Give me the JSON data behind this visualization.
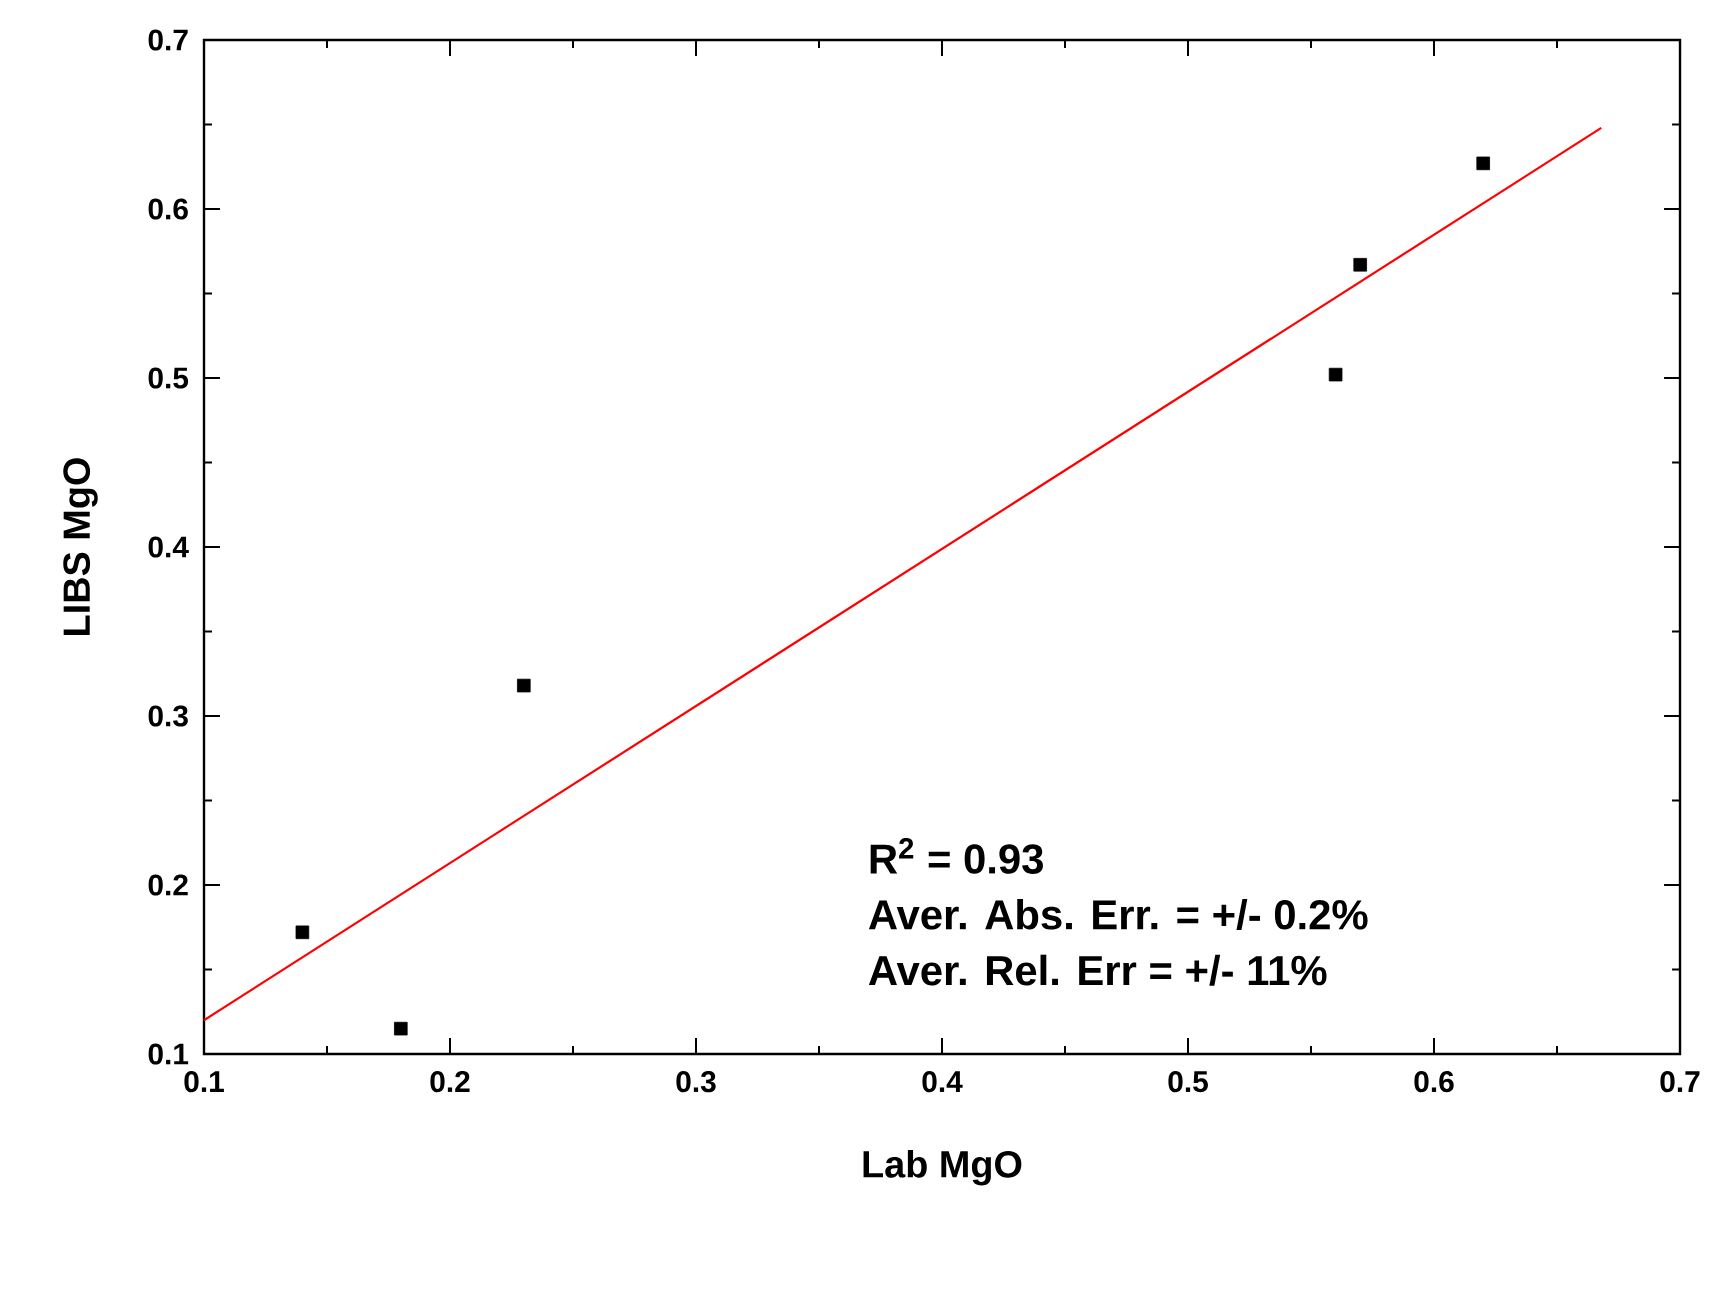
{
  "chart_data": {
    "type": "scatter",
    "xlabel": "Lab MgO",
    "ylabel": "LIBS MgO",
    "xlim": [
      0.1,
      0.7
    ],
    "ylim": [
      0.1,
      0.7
    ],
    "xticks": [
      0.1,
      0.2,
      0.3,
      0.4,
      0.5,
      0.6,
      0.7
    ],
    "yticks": [
      0.1,
      0.2,
      0.3,
      0.4,
      0.5,
      0.6,
      0.7
    ],
    "series": [
      {
        "color": "#000000",
        "x": [
          0.14,
          0.18,
          0.23,
          0.56,
          0.57,
          0.62
        ],
        "values": [
          0.172,
          0.115,
          0.318,
          0.502,
          0.567,
          0.627
        ]
      },
      {
        "type": "line",
        "color": "#ff0000",
        "marker": "none",
        "line_style": "solid",
        "x": [
          0.1,
          0.668
        ],
        "values": [
          0.12,
          0.648
        ]
      }
    ],
    "annotations": [
      "R$^{2}$ = 0.93",
      "Aver. Abs. Err. = +/- 0.2%",
      "Aver. Rel. Err = +/- 11%"
    ],
    "marker": "square"
  }
}
